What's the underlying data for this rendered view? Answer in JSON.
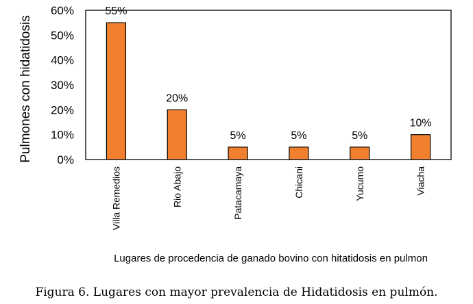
{
  "chart_data": {
    "type": "bar",
    "title": "",
    "xlabel": "Lugares de procedencia de ganado bovino con hitatidosis en pulmon",
    "ylabel": "Pulmones con hidatidosis",
    "categories": [
      "Villa Remedios",
      "Rio Abajo",
      "Patacamaya",
      "Chicani",
      "Yucumo",
      "Viacha"
    ],
    "values": [
      55,
      20,
      5,
      5,
      5,
      10
    ],
    "data_labels": [
      "55%",
      "20%",
      "5%",
      "5%",
      "5%",
      "10%"
    ],
    "yticks": [
      0,
      10,
      20,
      30,
      40,
      50,
      60
    ],
    "ytick_labels": [
      "0%",
      "10%",
      "20%",
      "30%",
      "40%",
      "50%",
      "60%"
    ],
    "ylim": [
      0,
      60
    ],
    "grid": false,
    "bar_color": "#f0802e"
  },
  "caption": "Figura 6. Lugares con mayor prevalencia de Hidatidosis en pulmón."
}
